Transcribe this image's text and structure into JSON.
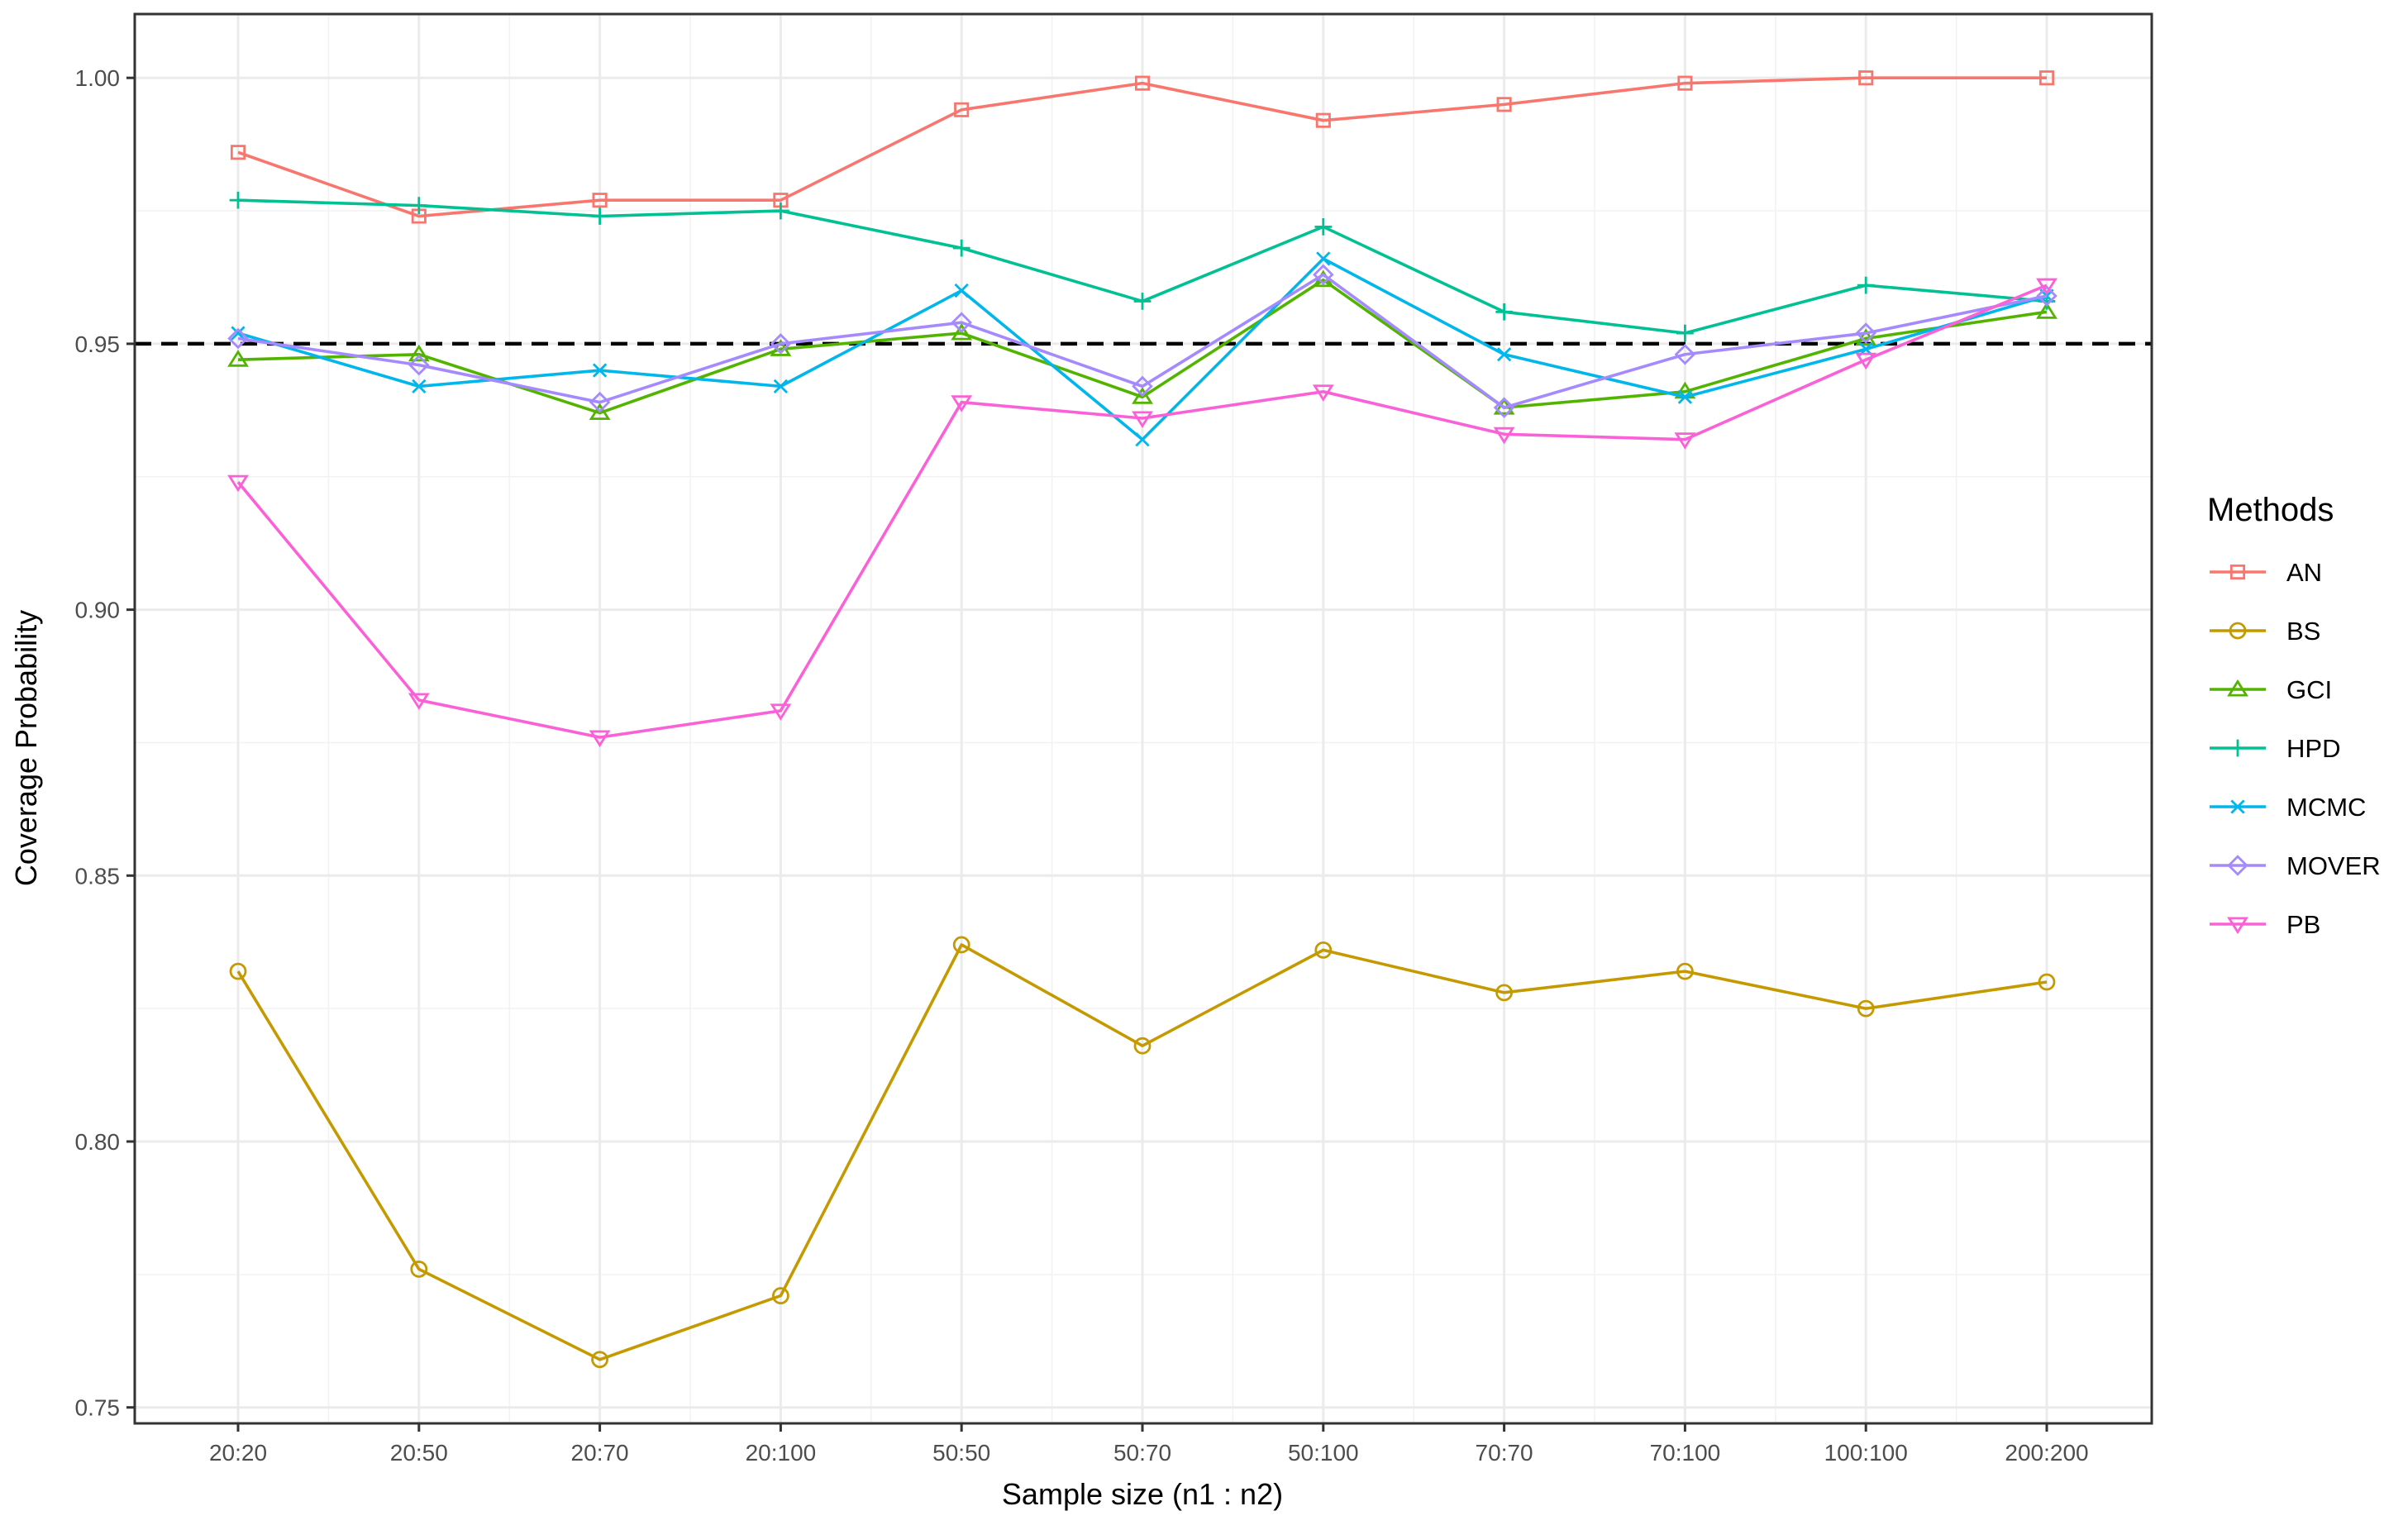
{
  "chart_data": {
    "type": "line",
    "title": "",
    "xlabel": "Sample size (n1 : n2)",
    "ylabel": "Coverage Probability",
    "categories": [
      "20:20",
      "20:50",
      "20:70",
      "20:100",
      "50:50",
      "50:70",
      "50:100",
      "70:70",
      "70:100",
      "100:100",
      "200:200"
    ],
    "y_ticks": [
      0.75,
      0.8,
      0.85,
      0.9,
      0.95,
      1.0
    ],
    "y_tick_labels": [
      "0.75",
      "0.80",
      "0.85",
      "0.90",
      "0.95",
      "1.00"
    ],
    "ylim": [
      0.747,
      1.012
    ],
    "grid": true,
    "reference_line": {
      "y": 0.95,
      "style": "dashed",
      "color": "#000000"
    },
    "legend": {
      "title": "Methods",
      "position": "right"
    },
    "series": [
      {
        "name": "AN",
        "color": "#F8766D",
        "marker": "square",
        "values": [
          0.986,
          0.974,
          0.977,
          0.977,
          0.994,
          0.999,
          0.992,
          0.995,
          0.999,
          1.0,
          1.0
        ]
      },
      {
        "name": "BS",
        "color": "#C49A00",
        "marker": "circle",
        "values": [
          0.832,
          0.776,
          0.759,
          0.771,
          0.837,
          0.818,
          0.836,
          0.828,
          0.832,
          0.825,
          0.83
        ]
      },
      {
        "name": "GCI",
        "color": "#53B400",
        "marker": "triangle-up",
        "values": [
          0.947,
          0.948,
          0.937,
          0.949,
          0.952,
          0.94,
          0.962,
          0.938,
          0.941,
          0.951,
          0.956
        ]
      },
      {
        "name": "HPD",
        "color": "#00C094",
        "marker": "plus",
        "values": [
          0.977,
          0.976,
          0.974,
          0.975,
          0.968,
          0.958,
          0.972,
          0.956,
          0.952,
          0.961,
          0.958
        ]
      },
      {
        "name": "MCMC",
        "color": "#00B6EB",
        "marker": "cross",
        "values": [
          0.952,
          0.942,
          0.945,
          0.942,
          0.96,
          0.932,
          0.966,
          0.948,
          0.94,
          0.949,
          0.959
        ]
      },
      {
        "name": "MOVER",
        "color": "#A58AFF",
        "marker": "diamond",
        "values": [
          0.951,
          0.946,
          0.939,
          0.95,
          0.954,
          0.942,
          0.963,
          0.938,
          0.948,
          0.952,
          0.959
        ]
      },
      {
        "name": "PB",
        "color": "#FB61D7",
        "marker": "triangle-down",
        "values": [
          0.924,
          0.883,
          0.876,
          0.881,
          0.939,
          0.936,
          0.941,
          0.933,
          0.932,
          0.947,
          0.961
        ]
      }
    ]
  }
}
